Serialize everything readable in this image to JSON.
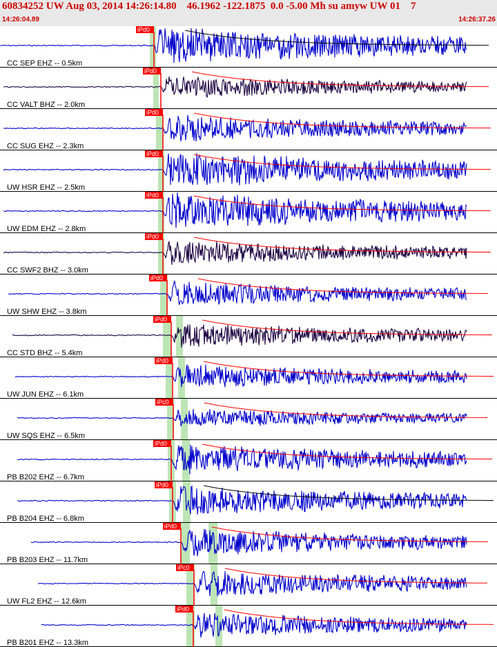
{
  "header": {
    "title": "60834252 UW Aug 03, 2014 14:26:14.80    46.1962 -122.1875  0.0 -5.00 Mh su amyw UW 01    7",
    "start_time": "14:26:04.89",
    "end_time": "14:26:37.26"
  },
  "colors": {
    "header_text": "#cc0000",
    "header_bg": "#e8e8e8",
    "trace_blue": "#0000cc",
    "trace_dark": "#1a0040",
    "pick": "#ff0000",
    "pick_window": "#bde5b5",
    "coda_fit_red": "#ff0000",
    "coda_fit_black": "#000000"
  },
  "pick_label": "iPd0",
  "traces": [
    {
      "label": "CC SEP EHZ -- 0.5km",
      "pick_label": "iPd0",
      "color": "blue"
    },
    {
      "label": "CC VALT BHZ -- 2.0km",
      "pick_label": "iPd0",
      "color": "dark"
    },
    {
      "label": "CC SUG EHZ -- 2.3km",
      "pick_label": "iPd0",
      "color": "blue"
    },
    {
      "label": "UW HSR EHZ -- 2.5km",
      "pick_label": "iPd0",
      "color": "blue"
    },
    {
      "label": "UW EDM EHZ -- 2.8km",
      "pick_label": "iPd0",
      "color": "blue"
    },
    {
      "label": "CC SWF2 BHZ -- 3.0km",
      "pick_label": "iPd0",
      "color": "dark"
    },
    {
      "label": "UW SHW EHZ -- 3.8km",
      "pick_label": "iPd0",
      "color": "blue"
    },
    {
      "label": "CC STD BHZ -- 5.4km",
      "pick_label": "iPd0",
      "color": "dark"
    },
    {
      "label": "UW JUN EHZ -- 6.1km",
      "pick_label": "iPd0",
      "color": "blue"
    },
    {
      "label": "UW SQS EHZ -- 6.5km",
      "pick_label": "iPc0",
      "color": "blue"
    },
    {
      "label": "PB B202 EHZ -- 6.7km",
      "pick_label": "iPd0",
      "color": "blue"
    },
    {
      "label": "PB B204 EHZ -- 6.8km",
      "pick_label": "iPd0",
      "color": "blue"
    },
    {
      "label": "PB B203 EHZ -- 11.7km",
      "pick_label": "iPd0",
      "color": "blue"
    },
    {
      "label": "UW FL2 EHZ -- 12.6km",
      "pick_label": "iPc0",
      "color": "blue"
    },
    {
      "label": "PB B201 EHZ -- 13.3km",
      "pick_label": "iPd0",
      "color": "blue"
    }
  ]
}
